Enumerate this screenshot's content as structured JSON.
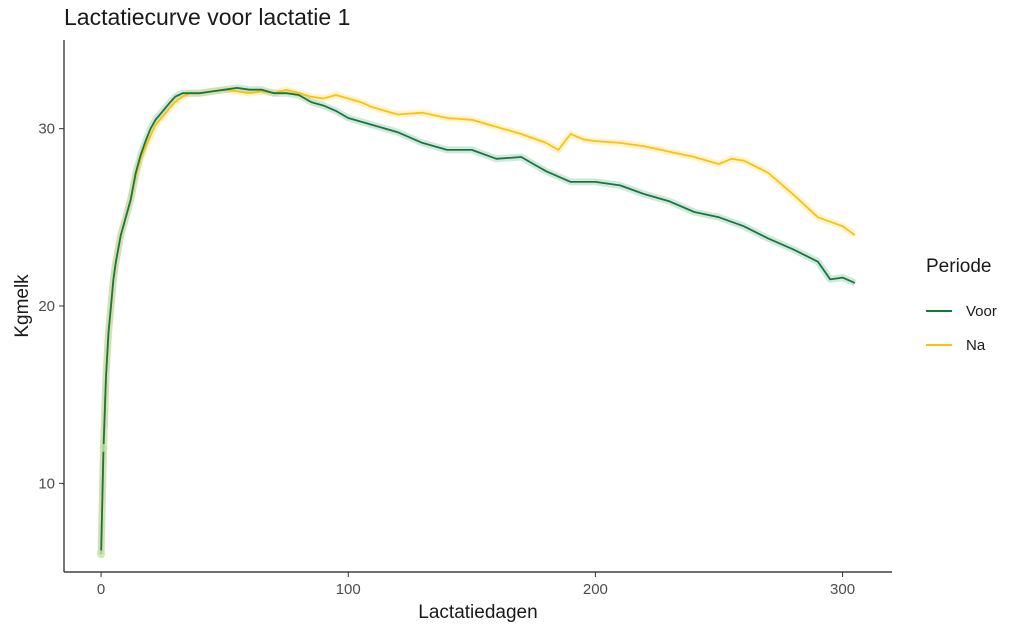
{
  "chart_data": {
    "type": "line",
    "title": "Lactatiecurve voor lactatie 1",
    "xlabel": "Lactatiedagen",
    "ylabel": "Kgmelk",
    "xlim": [
      -15,
      320
    ],
    "ylim": [
      5,
      35
    ],
    "xticks": [
      0,
      100,
      200,
      300
    ],
    "xtick_labels": [
      "0",
      "100",
      "200",
      "300"
    ],
    "yticks": [
      10,
      20,
      30
    ],
    "ytick_labels": [
      "10",
      "20",
      "30"
    ],
    "grid": false,
    "legend": {
      "title": "Periode",
      "position": "right"
    },
    "series": [
      {
        "name": "Voor",
        "color": "#117A3C",
        "x": [
          0,
          1,
          2,
          3,
          4,
          5,
          6,
          8,
          10,
          12,
          14,
          16,
          18,
          20,
          22,
          25,
          28,
          30,
          33,
          36,
          40,
          45,
          50,
          55,
          60,
          65,
          70,
          75,
          80,
          85,
          90,
          95,
          100,
          110,
          120,
          130,
          140,
          150,
          160,
          170,
          175,
          180,
          190,
          200,
          210,
          220,
          230,
          240,
          250,
          260,
          270,
          280,
          290,
          295,
          300,
          305
        ],
        "values": [
          6.0,
          12.0,
          16.0,
          18.5,
          20.0,
          21.5,
          22.5,
          24.0,
          25.0,
          26.0,
          27.5,
          28.5,
          29.3,
          30.0,
          30.5,
          31.0,
          31.5,
          31.8,
          32.0,
          32.0,
          32.0,
          32.1,
          32.2,
          32.3,
          32.2,
          32.2,
          32.0,
          32.0,
          31.9,
          31.5,
          31.3,
          31.0,
          30.6,
          30.2,
          29.8,
          29.2,
          28.8,
          28.8,
          28.3,
          28.4,
          28.0,
          27.6,
          27.0,
          27.0,
          26.8,
          26.3,
          25.9,
          25.3,
          25.0,
          24.5,
          23.8,
          23.2,
          22.5,
          21.5,
          21.6,
          21.3
        ]
      },
      {
        "name": "Na",
        "color": "#FFC107",
        "x": [
          0,
          1,
          2,
          3,
          4,
          5,
          6,
          8,
          10,
          12,
          14,
          16,
          18,
          20,
          22,
          25,
          28,
          30,
          33,
          36,
          40,
          45,
          50,
          55,
          60,
          65,
          70,
          75,
          80,
          85,
          90,
          95,
          100,
          105,
          110,
          120,
          130,
          140,
          150,
          160,
          170,
          180,
          185,
          190,
          195,
          200,
          210,
          220,
          230,
          240,
          250,
          255,
          260,
          270,
          280,
          290,
          300,
          305
        ],
        "values": [
          6.0,
          12.0,
          16.0,
          18.5,
          20.0,
          21.5,
          22.5,
          24.0,
          25.0,
          26.0,
          27.3,
          28.3,
          29.0,
          29.6,
          30.2,
          30.7,
          31.2,
          31.5,
          31.8,
          32.0,
          32.0,
          32.1,
          32.2,
          32.1,
          32.0,
          32.1,
          32.0,
          32.2,
          32.0,
          31.8,
          31.7,
          31.9,
          31.7,
          31.5,
          31.2,
          30.8,
          30.9,
          30.6,
          30.5,
          30.1,
          29.7,
          29.2,
          28.8,
          29.7,
          29.4,
          29.3,
          29.2,
          29.0,
          28.7,
          28.4,
          28.0,
          28.3,
          28.2,
          27.5,
          26.3,
          25.0,
          24.5,
          24.0
        ]
      }
    ]
  }
}
